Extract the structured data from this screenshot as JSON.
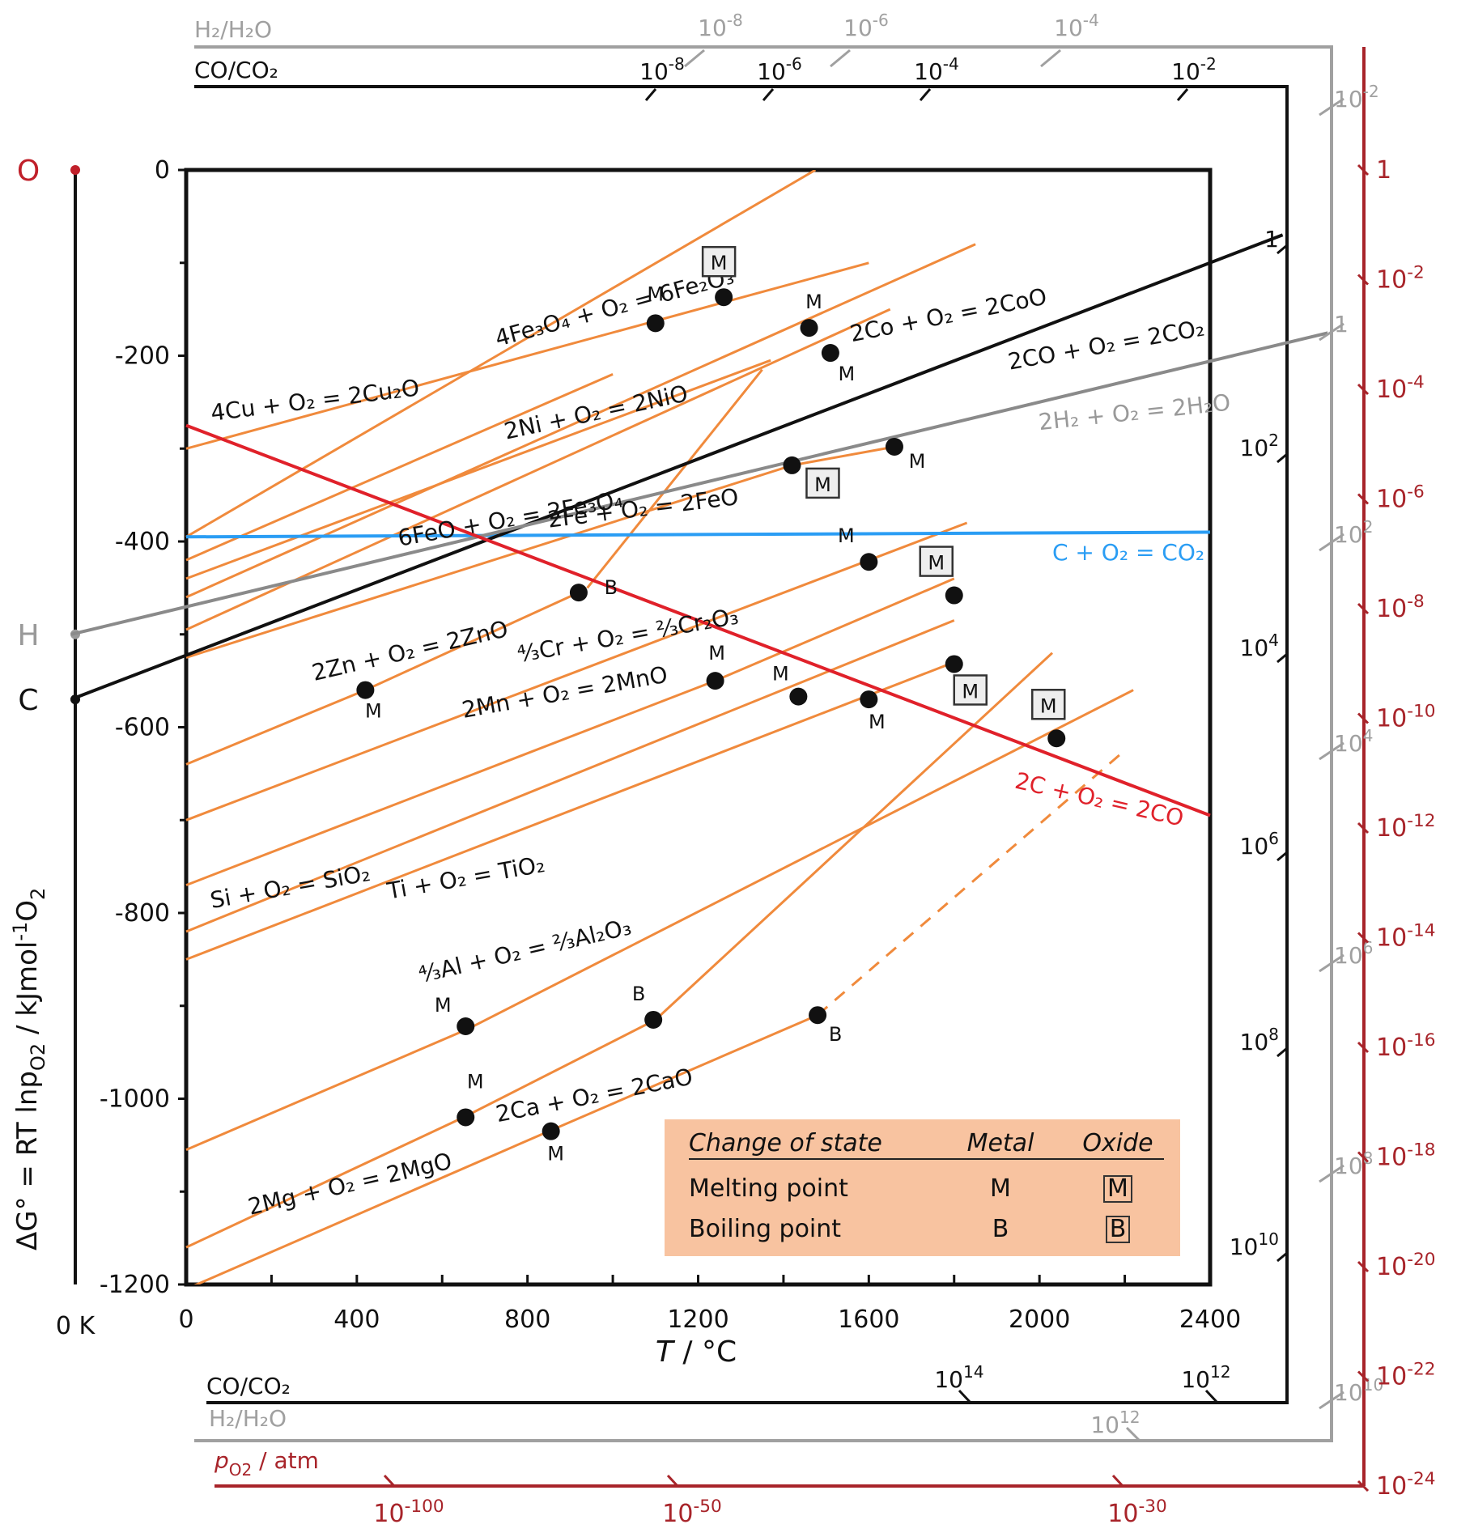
{
  "chart_data": {
    "type": "line",
    "ylabel": "ΔG° = RT lnp",
    "ylabel_sub": "O2",
    "ylabel_units": " / kJmol",
    "ylabel_sup": "-1",
    "ylabel_tail": "O",
    "ylabel_tail_sub": "2",
    "xlabel_italic": "T",
    "xlabel_rest": " / °C",
    "xlim": [
      0,
      2400
    ],
    "ylim": [
      -1200,
      0
    ],
    "x_ticks": [
      "0",
      "400",
      "800",
      "1200",
      "1600",
      "2000",
      "2400"
    ],
    "y_ticks": [
      "0",
      "-200",
      "-400",
      "-600",
      "-800",
      "-1000",
      "-1200"
    ],
    "zero_kelvin_label": "0 K",
    "pivot_points": [
      {
        "label": "O",
        "y": 0,
        "color": "#c0202a"
      },
      {
        "label": "H",
        "y": -500,
        "color": "#999999"
      },
      {
        "label": "C",
        "y": -570,
        "color": "#111111"
      }
    ],
    "series": [
      {
        "name": "4Cu + O2 = 2Cu2O",
        "color": "#f08a3c",
        "points": [
          [
            0,
            -300
          ],
          [
            1600,
            -100
          ]
        ]
      },
      {
        "name": "4Fe3O4 + O2 = 6Fe2O3",
        "color": "#f08a3c",
        "points": [
          [
            0,
            -395
          ],
          [
            1475,
            0
          ]
        ]
      },
      {
        "name": "2Co + O2 = 2CoO",
        "color": "#f08a3c",
        "points": [
          [
            0,
            -460
          ],
          [
            1850,
            -80
          ]
        ]
      },
      {
        "name": "2Ni + O2 = 2NiO",
        "color": "#f08a3c",
        "points": [
          [
            0,
            -495
          ],
          [
            1650,
            -150
          ]
        ]
      },
      {
        "name": "6FeO + O2 = 2Fe3O4",
        "color": "#f08a3c",
        "points": [
          [
            0,
            -440
          ],
          [
            1370,
            -205
          ]
        ]
      },
      {
        "name": "",
        "color": "#f08a3c",
        "points": [
          [
            0,
            -420
          ],
          [
            1000,
            -220
          ]
        ]
      },
      {
        "name": "",
        "color": "#f08a3c",
        "points": [
          [
            940,
            -450
          ],
          [
            1350,
            -215
          ]
        ]
      },
      {
        "name": "2Fe + O2 = 2FeO",
        "color": "#f08a3c",
        "points": [
          [
            0,
            -525
          ],
          [
            1420,
            -318
          ],
          [
            1660,
            -298
          ]
        ]
      },
      {
        "name": "2Zn + O2 = 2ZnO",
        "color": "#f08a3c",
        "points": [
          [
            0,
            -640
          ],
          [
            420,
            -560
          ],
          [
            920,
            -455
          ]
        ]
      },
      {
        "name": "4/3Cr + O2 = 2/3Cr2O3",
        "color": "#f08a3c",
        "points": [
          [
            0,
            -700
          ],
          [
            1830,
            -380
          ]
        ]
      },
      {
        "name": "2Mn + O2 = 2MnO",
        "color": "#f08a3c",
        "points": [
          [
            0,
            -770
          ],
          [
            1240,
            -550
          ],
          [
            1800,
            -440
          ]
        ]
      },
      {
        "name": "Si + O2 = SiO2",
        "color": "#f08a3c",
        "points": [
          [
            0,
            -820
          ],
          [
            1800,
            -485
          ]
        ]
      },
      {
        "name": "Ti + O2 = TiO2",
        "color": "#f08a3c",
        "points": [
          [
            0,
            -850
          ],
          [
            1800,
            -530
          ]
        ]
      },
      {
        "name": "4/3Al + O2 = 2/3Al2O3",
        "color": "#f08a3c",
        "points": [
          [
            0,
            -1055
          ],
          [
            660,
            -925
          ],
          [
            2220,
            -560
          ]
        ]
      },
      {
        "name": "2Mg + O2 = 2MgO",
        "color": "#f08a3c",
        "points": [
          [
            0,
            -1160
          ],
          [
            650,
            -1020
          ],
          [
            1100,
            -915
          ],
          [
            2030,
            -520
          ]
        ]
      },
      {
        "name": "2Ca + O2 = 2CaO",
        "color": "#f08a3c",
        "points": [
          [
            0,
            -1205
          ],
          [
            850,
            -1035
          ],
          [
            1480,
            -910
          ]
        ]
      },
      {
        "name": "",
        "color": "#f08a3c",
        "dashed": true,
        "points": [
          [
            1480,
            -910
          ],
          [
            2200,
            -625
          ]
        ]
      },
      {
        "name": "C + O2 = CO2",
        "color": "#2a9df4",
        "points": [
          [
            0,
            -395
          ],
          [
            2400,
            -390
          ]
        ]
      },
      {
        "name": "2CO + O2 = 2CO2",
        "color": "#111111",
        "points": [
          [
            -270,
            -570
          ],
          [
            2570,
            -70
          ]
        ]
      },
      {
        "name": "2H2 + O2 = 2H2O",
        "color": "#8a8a8a",
        "points": [
          [
            -270,
            -500
          ],
          [
            2680,
            -175
          ]
        ]
      },
      {
        "name": "2C + O2 = 2CO",
        "color": "#e0212a",
        "points": [
          [
            0,
            -275
          ],
          [
            2400,
            -695
          ]
        ]
      }
    ],
    "line_labels": [
      {
        "text": "4Cu + O₂ = 2Cu₂O",
        "color": "#111",
        "x": 60,
        "y": -270,
        "angle": -7
      },
      {
        "text": "4Fe₃O₄ + O₂ = 6Fe₂O₃",
        "color": "#111",
        "x": 730,
        "y": -190,
        "angle": -15
      },
      {
        "text": "2Ni + O₂ = 2NiO",
        "color": "#111",
        "x": 750,
        "y": -290,
        "angle": -12
      },
      {
        "text": "2Co + O₂ = 2CoO",
        "color": "#111",
        "x": 1560,
        "y": -185,
        "angle": -11
      },
      {
        "text": "2CO + O₂ = 2CO₂",
        "color": "#111",
        "x": 1930,
        "y": -215,
        "angle": -10
      },
      {
        "text": "2H₂ + O₂ = 2H₂O",
        "color": "#999",
        "x": 2000,
        "y": -280,
        "angle": -6
      },
      {
        "text": "6FeO + O₂ = 2Fe₃O₄",
        "color": "#111",
        "x": 500,
        "y": -405,
        "angle": -10
      },
      {
        "text": "2Fe + O₂ = 2FeO",
        "color": "#111",
        "x": 850,
        "y": -385,
        "angle": -7
      },
      {
        "text": "C + O₂ = CO₂",
        "color": "#2a9df4",
        "x": 2030,
        "y": -420,
        "angle": 0
      },
      {
        "text": "2Zn + O₂ = 2ZnO",
        "color": "#111",
        "x": 300,
        "y": -550,
        "angle": -13
      },
      {
        "text": "⁴⁄₃Cr + O₂ = ²⁄₃Cr₂O₃",
        "color": "#111",
        "x": 780,
        "y": -530,
        "angle": -10
      },
      {
        "text": "2Mn + O₂ = 2MnO",
        "color": "#111",
        "x": 650,
        "y": -590,
        "angle": -10
      },
      {
        "text": "Si + O₂ = SiO₂",
        "color": "#111",
        "x": 60,
        "y": -795,
        "angle": -10
      },
      {
        "text": "Ti + O₂ = TiO₂",
        "color": "#111",
        "x": 475,
        "y": -785,
        "angle": -10
      },
      {
        "text": "⁴⁄₃Al + O₂ = ²⁄₃Al₂O₃",
        "color": "#111",
        "x": 550,
        "y": -875,
        "angle": -13
      },
      {
        "text": "2Mg + O₂ = 2MgO",
        "color": "#111",
        "x": 150,
        "y": -1125,
        "angle": -13
      },
      {
        "text": "2Ca + O₂ = 2CaO",
        "color": "#111",
        "x": 730,
        "y": -1025,
        "angle": -11
      },
      {
        "text": "2C + O₂ = 2CO",
        "color": "#e0212a",
        "x": 1940,
        "y": -665,
        "angle": 13
      }
    ],
    "transition_points": [
      {
        "x": 1100,
        "y": -165,
        "type": "M-metal",
        "label_dx": 0,
        "label_dy": -32
      },
      {
        "x": 1260,
        "y": -137,
        "type": "M-oxide",
        "label_dx": -6,
        "label_dy": -38
      },
      {
        "x": 1460,
        "y": -170,
        "type": "M-metal",
        "label_dx": 6,
        "label_dy": -28
      },
      {
        "x": 1510,
        "y": -197,
        "type": "M-metal",
        "label_dx": 20,
        "label_dy": 30
      },
      {
        "x": 1420,
        "y": -318,
        "type": "M-oxide",
        "label_dx": 38,
        "label_dy": 28
      },
      {
        "x": 1660,
        "y": -298,
        "type": "M-metal",
        "label_dx": 28,
        "label_dy": 22
      },
      {
        "x": 920,
        "y": -455,
        "type": "B-metal",
        "label_dx": 40,
        "label_dy": -2
      },
      {
        "x": 1600,
        "y": -422,
        "type": "M-metal",
        "label_dx": -28,
        "label_dy": -28
      },
      {
        "x": 1800,
        "y": -458,
        "type": "M-oxide",
        "label_dx": -22,
        "label_dy": -36
      },
      {
        "x": 420,
        "y": -560,
        "type": "M-metal",
        "label_dx": 10,
        "label_dy": 30
      },
      {
        "x": 1240,
        "y": -550,
        "type": "M-metal",
        "label_dx": 2,
        "label_dy": -30
      },
      {
        "x": 1435,
        "y": -567,
        "type": "M-metal",
        "label_dx": -22,
        "label_dy": -24
      },
      {
        "x": 1600,
        "y": -570,
        "type": "M-metal",
        "label_dx": 10,
        "label_dy": 32
      },
      {
        "x": 1800,
        "y": -532,
        "type": "M-oxide",
        "label_dx": 20,
        "label_dy": 38
      },
      {
        "x": 2040,
        "y": -612,
        "type": "M-oxide",
        "label_dx": -10,
        "label_dy": -36
      },
      {
        "x": 655,
        "y": -922,
        "type": "M-metal",
        "label_dx": -28,
        "label_dy": -22
      },
      {
        "x": 1095,
        "y": -915,
        "type": "B-metal",
        "label_dx": -18,
        "label_dy": -28
      },
      {
        "x": 1480,
        "y": -910,
        "type": "B-metal",
        "label_dx": 22,
        "label_dy": 28
      },
      {
        "x": 655,
        "y": -1020,
        "type": "M-metal",
        "label_dx": 12,
        "label_dy": -40
      },
      {
        "x": 855,
        "y": -1035,
        "type": "M-metal",
        "label_dx": 6,
        "label_dy": 32
      }
    ],
    "legend": {
      "header": [
        "Change of state",
        "Metal",
        "Oxide"
      ],
      "rows": [
        {
          "state": "Melting point",
          "metal": "M",
          "oxide": "M"
        },
        {
          "state": "Boiling point",
          "metal": "B",
          "oxide": "B"
        }
      ]
    },
    "scales": {
      "co_co2_top_label": "CO/CO₂",
      "h2_h2o_top_label": "H₂/H₂O",
      "co_co2_top_ticks": [
        {
          "base": "10",
          "exp": "-8"
        },
        {
          "base": "10",
          "exp": "-6"
        },
        {
          "base": "10",
          "exp": "-4"
        },
        {
          "base": "10",
          "exp": "-2"
        }
      ],
      "h2_h2o_top_ticks": [
        {
          "base": "10",
          "exp": "-8"
        },
        {
          "base": "10",
          "exp": "-6"
        },
        {
          "base": "10",
          "exp": "-4"
        }
      ],
      "co_co2_right_ticks": [
        {
          "base": "1",
          "exp": ""
        },
        {
          "base": "10",
          "exp": "2"
        },
        {
          "base": "10",
          "exp": "4"
        },
        {
          "base": "10",
          "exp": "6"
        },
        {
          "base": "10",
          "exp": "8"
        },
        {
          "base": "10",
          "exp": "10"
        }
      ],
      "h2_h2o_right_ticks": [
        {
          "base": "10",
          "exp": "-2"
        },
        {
          "base": "1",
          "exp": ""
        },
        {
          "base": "10",
          "exp": "2"
        },
        {
          "base": "10",
          "exp": "4"
        },
        {
          "base": "10",
          "exp": "6"
        },
        {
          "base": "10",
          "exp": "8"
        },
        {
          "base": "10",
          "exp": "10"
        }
      ],
      "po2_right_ticks": [
        {
          "base": "1",
          "exp": ""
        },
        {
          "base": "10",
          "exp": "-2"
        },
        {
          "base": "10",
          "exp": "-4"
        },
        {
          "base": "10",
          "exp": "-6"
        },
        {
          "base": "10",
          "exp": "-8"
        },
        {
          "base": "10",
          "exp": "-10"
        },
        {
          "base": "10",
          "exp": "-12"
        },
        {
          "base": "10",
          "exp": "-14"
        },
        {
          "base": "10",
          "exp": "-16"
        },
        {
          "base": "10",
          "exp": "-18"
        },
        {
          "base": "10",
          "exp": "-20"
        },
        {
          "base": "10",
          "exp": "-22"
        },
        {
          "base": "10",
          "exp": "-24"
        }
      ],
      "co_co2_bottom_label": "CO/CO₂",
      "h2_h2o_bottom_label": "H₂/H₂O",
      "co_co2_bottom_ticks": [
        {
          "base": "10",
          "exp": "14"
        },
        {
          "base": "10",
          "exp": "12"
        }
      ],
      "h2_h2o_bottom_ticks": [
        {
          "base": "10",
          "exp": "12"
        }
      ],
      "po2_bottom_label_italic": "p",
      "po2_bottom_label_sub": "O2",
      "po2_bottom_label_rest": " / atm",
      "po2_bottom_ticks": [
        {
          "base": "10",
          "exp": "-100"
        },
        {
          "base": "10",
          "exp": "-50"
        },
        {
          "base": "10",
          "exp": "-30"
        }
      ]
    },
    "colors": {
      "oxide_lines": "#f08a3c",
      "co2_line": "#2a9df4",
      "co_line": "#e0212a",
      "co_co2_line": "#111111",
      "h2_h2o_line": "#8a8a8a",
      "po2_scale": "#a8242a",
      "legend_bg": "#f8c3a0"
    }
  }
}
